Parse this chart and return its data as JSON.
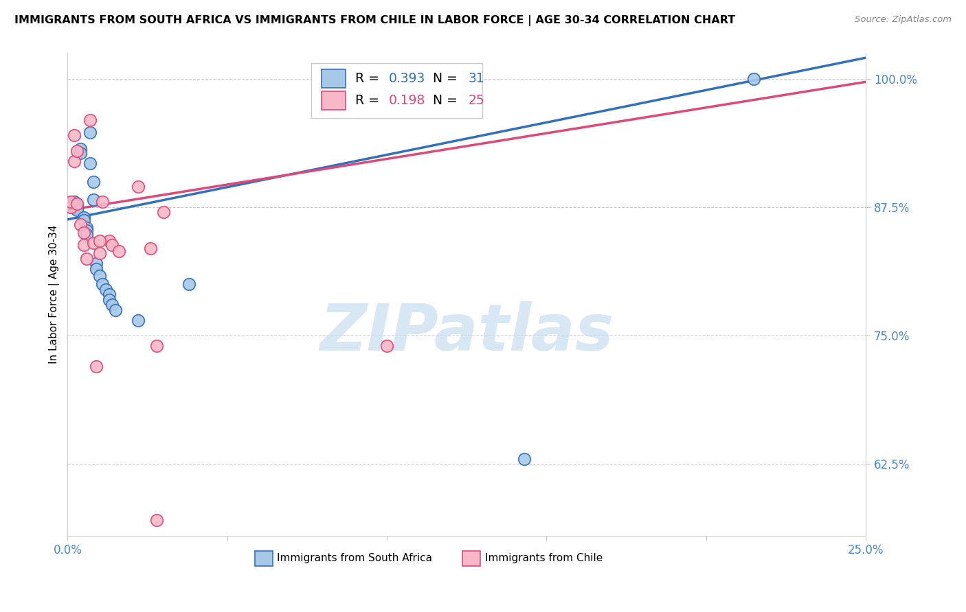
{
  "title": "IMMIGRANTS FROM SOUTH AFRICA VS IMMIGRANTS FROM CHILE IN LABOR FORCE | AGE 30-34 CORRELATION CHART",
  "source": "Source: ZipAtlas.com",
  "ylabel_label": "In Labor Force | Age 30-34",
  "x_min": 0.0,
  "x_max": 0.25,
  "y_min": 0.555,
  "y_max": 1.025,
  "blue_color": "#a8c8e8",
  "blue_line_color": "#3070c0",
  "pink_color": "#f8b8c8",
  "pink_line_color": "#e04878",
  "legend_R_blue": "0.393",
  "legend_N_blue": "31",
  "legend_R_pink": "0.198",
  "legend_N_pink": "25",
  "blue_x": [
    0.001,
    0.001,
    0.002,
    0.002,
    0.003,
    0.003,
    0.003,
    0.004,
    0.004,
    0.005,
    0.005,
    0.006,
    0.006,
    0.006,
    0.007,
    0.007,
    0.008,
    0.008,
    0.009,
    0.009,
    0.01,
    0.011,
    0.012,
    0.013,
    0.013,
    0.014,
    0.015,
    0.022,
    0.038,
    0.143,
    0.215
  ],
  "blue_y": [
    0.875,
    0.878,
    0.88,
    0.876,
    0.876,
    0.874,
    0.872,
    0.932,
    0.928,
    0.865,
    0.862,
    0.855,
    0.852,
    0.848,
    0.948,
    0.918,
    0.9,
    0.882,
    0.82,
    0.815,
    0.808,
    0.8,
    0.795,
    0.79,
    0.785,
    0.78,
    0.775,
    0.765,
    0.8,
    0.63,
    1.0
  ],
  "pink_x": [
    0.001,
    0.001,
    0.002,
    0.002,
    0.003,
    0.003,
    0.004,
    0.005,
    0.005,
    0.006,
    0.007,
    0.008,
    0.009,
    0.01,
    0.011,
    0.013,
    0.014,
    0.016,
    0.022,
    0.026,
    0.028,
    0.1,
    0.028,
    0.03,
    0.01
  ],
  "pink_y": [
    0.875,
    0.88,
    0.92,
    0.945,
    0.93,
    0.878,
    0.858,
    0.85,
    0.838,
    0.825,
    0.96,
    0.84,
    0.72,
    0.83,
    0.88,
    0.842,
    0.838,
    0.832,
    0.895,
    0.835,
    0.74,
    0.74,
    0.57,
    0.87,
    0.842
  ],
  "watermark_text": "ZIPatlas",
  "watermark_color": "#c8ddf0",
  "bottom_legend_blue": "Immigrants from South Africa",
  "bottom_legend_pink": "Immigrants from Chile"
}
